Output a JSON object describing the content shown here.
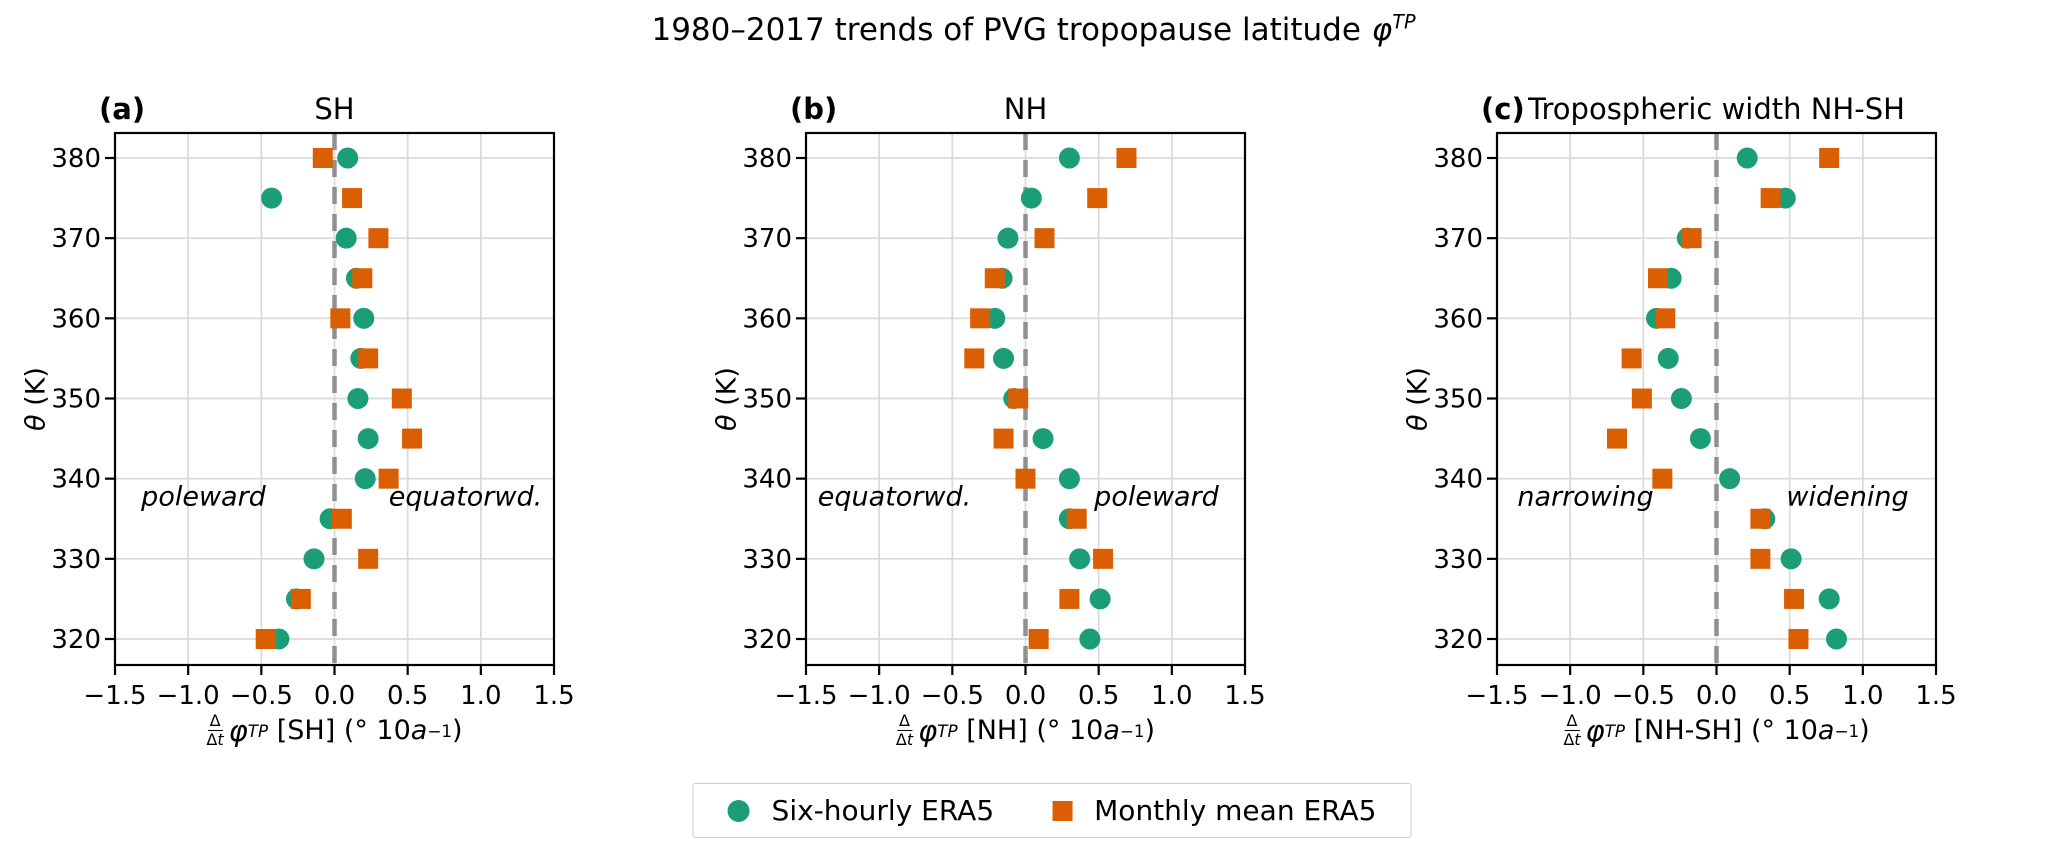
{
  "figure": {
    "title_text": "1980–2017 trends of PVG tropopause latitude ",
    "title_phi": "φ",
    "title_sup": "TP"
  },
  "legend": {
    "items": [
      {
        "marker": "circle",
        "color": "#1b9e77",
        "label": "Six-hourly ERA5"
      },
      {
        "marker": "square",
        "color": "#d95f02",
        "label": "Monthly mean ERA5"
      }
    ]
  },
  "chart_data": {
    "type": "scatter",
    "title": "1980–2017 trends of PVG tropopause latitude φ^TP",
    "xlim": [
      -1.5,
      1.5
    ],
    "ylim": [
      316.8,
      383.3
    ],
    "grid": true,
    "zero_line_dashed": true,
    "legend_position": "bottom-center",
    "xticks": [
      -1.5,
      -1.0,
      -0.5,
      0.0,
      0.5,
      1.0,
      1.5
    ],
    "xtick_labels": [
      "−1.5",
      "−1.0",
      "−0.5",
      "0.0",
      "0.5",
      "1.0",
      "1.5"
    ],
    "yticks": [
      320,
      330,
      340,
      350,
      360,
      370,
      380
    ],
    "ytick_labels": [
      "320",
      "330",
      "340",
      "350",
      "360",
      "370",
      "380"
    ],
    "ylabel": {
      "theta": "θ",
      "unit": " (K)"
    },
    "xlabel_parts": {
      "num": "Δ",
      "den_d": "Δ",
      "den_t": "t",
      "phi": "φ",
      "phi_sup": "TP",
      "unit_open": "(° 10",
      "unit_var": "a",
      "unit_sup": "−1",
      "unit_close": ")"
    },
    "series_names": [
      "Six-hourly ERA5",
      "Monthly mean ERA5"
    ],
    "colors": {
      "six_hourly": "#1b9e77",
      "monthly": "#d95f02",
      "grid": "#d9d9d9",
      "zero_line": "#909090",
      "spine": "#000000"
    },
    "theta_levels": [
      320,
      325,
      330,
      335,
      340,
      345,
      350,
      355,
      360,
      365,
      370,
      375,
      380
    ],
    "panels": [
      {
        "tag": "(a)",
        "title": "SH",
        "bracket": "[SH]",
        "left_note": "poleward",
        "right_note": "equatorwd.",
        "six_hourly": [
          -0.38,
          -0.26,
          -0.14,
          -0.03,
          0.21,
          0.23,
          0.16,
          0.18,
          0.2,
          0.15,
          0.08,
          -0.43,
          0.09
        ],
        "monthly": [
          -0.47,
          -0.23,
          0.23,
          0.05,
          0.37,
          0.53,
          0.46,
          0.23,
          0.04,
          0.19,
          0.3,
          0.12,
          -0.08
        ]
      },
      {
        "tag": "(b)",
        "title": "NH",
        "bracket": "[NH]",
        "left_note": "equatorwd.",
        "right_note": "poleward",
        "six_hourly": [
          0.44,
          0.51,
          0.37,
          0.3,
          0.3,
          0.12,
          -0.08,
          -0.15,
          -0.21,
          -0.16,
          -0.12,
          0.04,
          0.3
        ],
        "monthly": [
          0.09,
          0.3,
          0.53,
          0.35,
          0.0,
          -0.15,
          -0.05,
          -0.35,
          -0.31,
          -0.21,
          0.13,
          0.49,
          0.69
        ]
      },
      {
        "tag": "(c)",
        "title": "Tropospheric width NH-SH",
        "bracket": "[NH-SH]",
        "left_note": "narrowing",
        "right_note": "widening",
        "six_hourly": [
          0.82,
          0.77,
          0.51,
          0.33,
          0.09,
          -0.11,
          -0.24,
          -0.33,
          -0.41,
          -0.31,
          -0.2,
          0.47,
          0.21
        ],
        "monthly": [
          0.56,
          0.53,
          0.3,
          0.3,
          -0.37,
          -0.68,
          -0.51,
          -0.58,
          -0.35,
          -0.4,
          -0.17,
          0.37,
          0.77
        ]
      }
    ]
  }
}
